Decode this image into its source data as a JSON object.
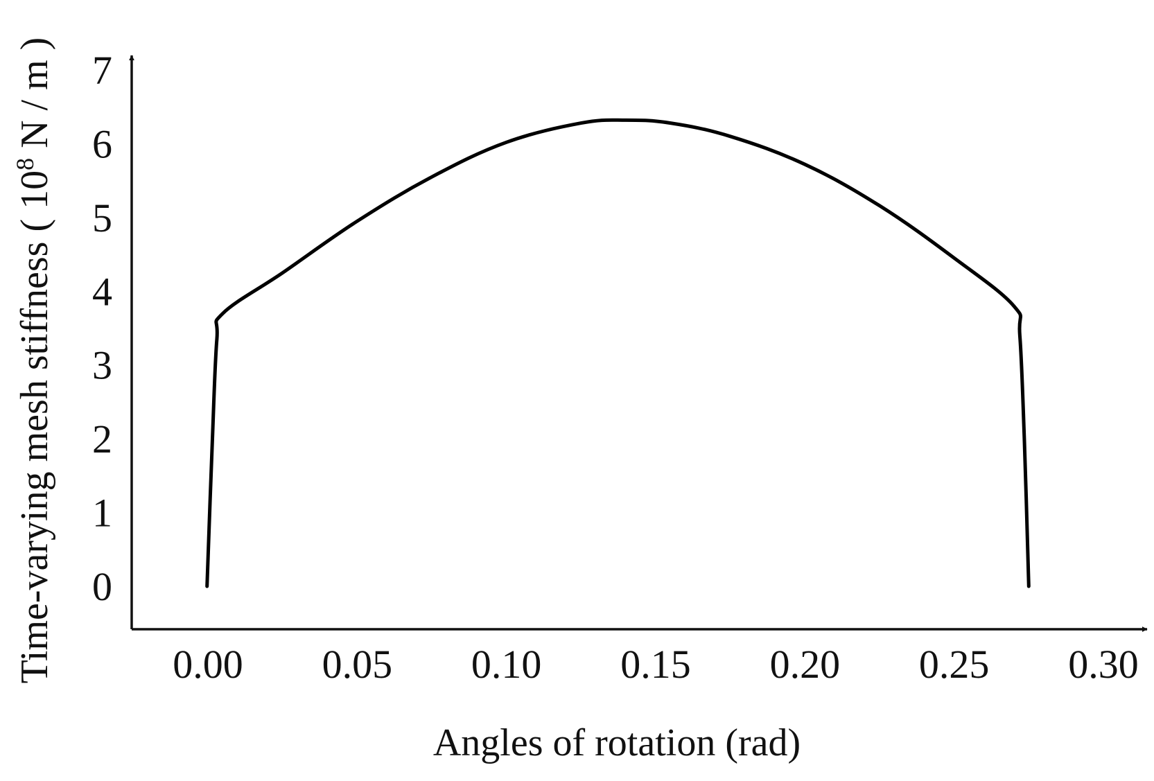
{
  "chart_data": {
    "type": "line",
    "title": "",
    "xlabel": "Angles of rotation (rad)",
    "ylabel": {
      "prefix": "Time-varying mesh stiffness ( 10",
      "superscript": "8",
      "suffix": " N / m )"
    },
    "xlim": [
      -0.025,
      0.3
    ],
    "ylim": [
      0,
      7
    ],
    "x_ticks": [
      "0.00",
      "0.05",
      "0.10",
      "0.15",
      "0.20",
      "0.25",
      "0.30"
    ],
    "y_ticks": [
      "0",
      "1",
      "2",
      "3",
      "4",
      "5",
      "6",
      "7"
    ],
    "grid": false,
    "legend": "none",
    "series": [
      {
        "color": "#000000",
        "points": [
          [
            -0.0003,
            0.0
          ],
          [
            0.0015,
            2.0
          ],
          [
            0.003,
            3.35
          ],
          [
            0.005,
            3.7
          ],
          [
            0.025,
            4.25
          ],
          [
            0.05,
            4.95
          ],
          [
            0.075,
            5.55
          ],
          [
            0.1,
            6.02
          ],
          [
            0.125,
            6.28
          ],
          [
            0.14,
            6.32
          ],
          [
            0.155,
            6.28
          ],
          [
            0.175,
            6.1
          ],
          [
            0.2,
            5.72
          ],
          [
            0.225,
            5.16
          ],
          [
            0.25,
            4.45
          ],
          [
            0.27,
            3.8
          ],
          [
            0.272,
            3.4
          ],
          [
            0.2735,
            2.0
          ],
          [
            0.275,
            0.0
          ]
        ]
      }
    ]
  }
}
